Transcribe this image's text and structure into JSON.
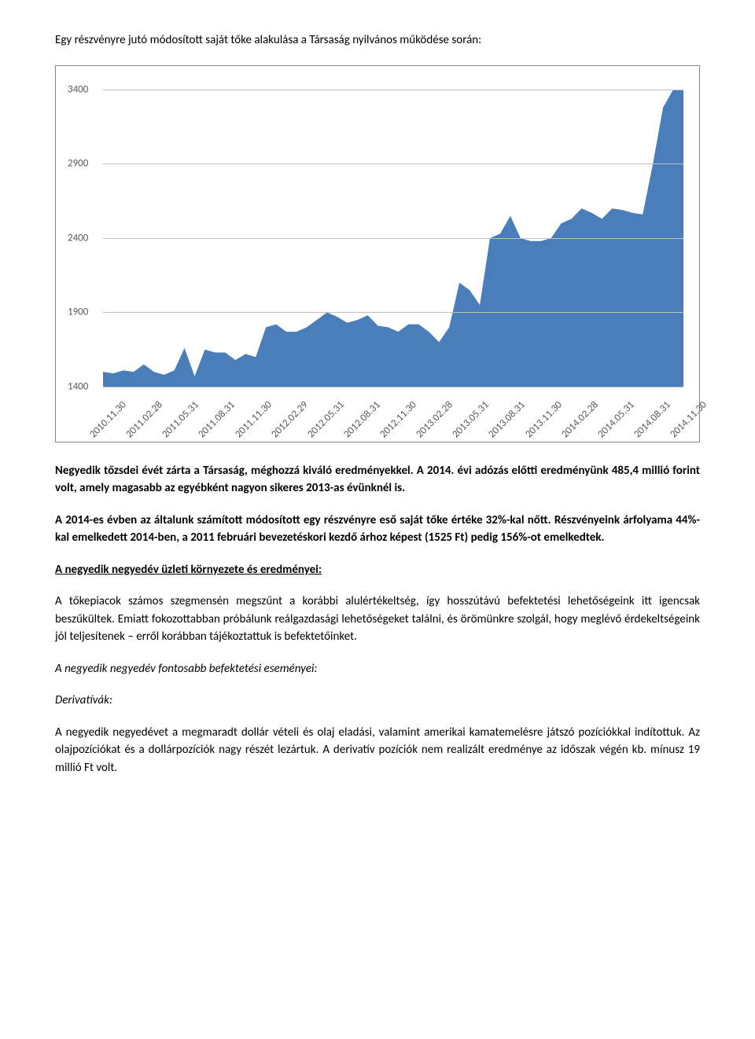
{
  "title": "Egy részvényre jutó módosított saját tőke alakulása a Társaság nyilvános működése során:",
  "chart": {
    "type": "area",
    "fill_color": "#4a7ebb",
    "grid_color": "#bfbfbf",
    "border_color": "#888888",
    "background": "#ffffff",
    "tick_color": "#595959",
    "tick_fontsize": 13,
    "ylim_min": 1400,
    "ylim_max": 3400,
    "ytick_step": 500,
    "yticks": [
      1400,
      1900,
      2400,
      2900,
      3400
    ],
    "x_labels": [
      "2010.11.30",
      "2011.02.28",
      "2011.05.31",
      "2011.08.31",
      "2011.11.30",
      "2012.02.29",
      "2012.05.31",
      "2012.08.31",
      "2012.11.30",
      "2013.02.28",
      "2013.05.31",
      "2013.08.31",
      "2013.11.30",
      "2014.02.28",
      "2014.05.31",
      "2014.08.31",
      "2014.11.30"
    ],
    "values": [
      1500,
      1490,
      1510,
      1500,
      1550,
      1500,
      1480,
      1510,
      1660,
      1470,
      1650,
      1630,
      1630,
      1580,
      1620,
      1600,
      1800,
      1820,
      1770,
      1770,
      1800,
      1850,
      1900,
      1870,
      1830,
      1850,
      1880,
      1810,
      1800,
      1770,
      1820,
      1820,
      1770,
      1700,
      1800,
      2100,
      2050,
      1950,
      2400,
      2430,
      2550,
      2400,
      2380,
      2380,
      2400,
      2500,
      2530,
      2600,
      2570,
      2530,
      2600,
      2590,
      2570,
      2560,
      2900,
      3280,
      3400,
      3450
    ]
  },
  "para1": {
    "part1": "Negyedik tőzsdei évét zárta a Társaság, méghozzá kiváló eredményekkel. A 2014. évi adózás előtti eredményünk 485,4 millió forint volt, amely magasabb az egyébként nagyon sikeres 2013-as évünknél is."
  },
  "para2": {
    "part1": "A 2014-es évben az általunk számított módosított egy részvényre eső saját tőke értéke 32%-kal nőtt. Részvényeink árfolyama 44%-kal emelkedett 2014-ben, a 2011 februári bevezetéskori kezdő árhoz képest (1525 Ft) pedig 156%-ot emelkedtek."
  },
  "section_heading": "A negyedik negyedév üzleti környezete és eredményei:",
  "para3": "A tőkepiacok számos szegmensén megszűnt a korábbi alulértékeltség, így hosszútávú befektetési lehetőségeink itt igencsak beszűkültek. Emiatt fokozottabban próbálunk reálgazdasági lehetőségeket találni, és örömünkre szolgál, hogy meglévő érdekeltségeink jól teljesítenek – erről korábban tájékoztattuk is befektetőinket.",
  "sub_heading": "A negyedik negyedév fontosabb befektetési eseményei:",
  "deriv_label": "Derivatívák:",
  "para4": "A negyedik negyedévet a megmaradt dollár vételi és olaj eladási, valamint amerikai kamatemelésre játszó pozíciókkal indítottuk. Az olajpozíciókat és a dollárpozíciók nagy részét lezártuk. A derivatív pozíciók nem realizált eredménye az időszak végén kb. mínusz 19 millió Ft volt."
}
